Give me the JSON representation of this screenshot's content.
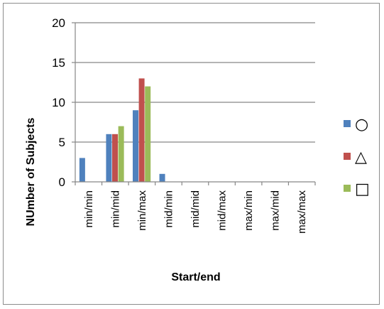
{
  "chart_data": {
    "type": "bar",
    "title": "",
    "xlabel": "Start/end",
    "ylabel": "NUmber of Subjects",
    "ylim": [
      0,
      20
    ],
    "yticks": [
      0,
      5,
      10,
      15,
      20
    ],
    "grid": true,
    "legend_position": "right",
    "categories": [
      "min/min",
      "min/mid",
      "min/max",
      "mid/min",
      "mid/mid",
      "mid/max",
      "max/min",
      "max/mid",
      "max/max"
    ],
    "series": [
      {
        "name": "○",
        "color": "#4f81bd",
        "values": [
          3,
          6,
          9,
          1,
          0,
          0,
          0,
          0,
          0
        ]
      },
      {
        "name": "△",
        "color": "#c0504d",
        "values": [
          0,
          6,
          13,
          0,
          0,
          0,
          0,
          0,
          0
        ]
      },
      {
        "name": "□",
        "color": "#9bbb59",
        "values": [
          0,
          7,
          12,
          0,
          0,
          0,
          0,
          0,
          0
        ]
      }
    ]
  }
}
